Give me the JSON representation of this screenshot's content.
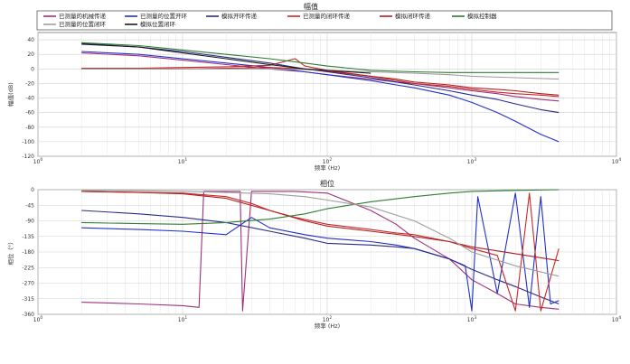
{
  "legend_title": "幅值",
  "legend": [
    {
      "name": "已测量的机械传递",
      "color": "#a0307a"
    },
    {
      "name": "已测量的位置开环",
      "color": "#2230c8"
    },
    {
      "name": "模拟开环传递",
      "color": "#2a2a8a"
    },
    {
      "name": "已测量的闭环传递",
      "color": "#c62828"
    },
    {
      "name": "模拟闭环传递",
      "color": "#b02020"
    },
    {
      "name": "模拟控制器",
      "color": "#2e7d32"
    },
    {
      "name": "已测量的位置闭环",
      "color": "#9e9e9e"
    },
    {
      "name": "模拟位置闭环",
      "color": "#1a1a1a"
    }
  ],
  "chart_data": [
    {
      "type": "line",
      "title": "",
      "xlabel": "频率 (Hz)",
      "ylabel": "幅值(dB)",
      "xscale": "log",
      "xlim": [
        1,
        10000
      ],
      "ylim": [
        -120,
        50
      ],
      "xticks": [
        "10^0",
        "10^1",
        "10^2",
        "10^3",
        "10^4"
      ],
      "yticks": [
        "40",
        "20",
        "0",
        "-20",
        "-40",
        "-60",
        "-80",
        "-100",
        "-120"
      ],
      "grid": true,
      "series": [
        {
          "name": "已测量的机械传递",
          "color": "#a0307a",
          "x": [
            2,
            5,
            10,
            20,
            40,
            70,
            100,
            200,
            300,
            400,
            700,
            1000,
            1500,
            2000,
            3000,
            4000
          ],
          "y": [
            22,
            18,
            12,
            6,
            0,
            -4,
            -8,
            -14,
            -18,
            -20,
            -26,
            -30,
            -34,
            -38,
            -42,
            -44
          ]
        },
        {
          "name": "已测量的位置开环",
          "color": "#2230c8",
          "x": [
            2,
            5,
            10,
            20,
            40,
            70,
            100,
            200,
            300,
            400,
            700,
            1000,
            1500,
            2000,
            3000,
            4000
          ],
          "y": [
            24,
            20,
            14,
            8,
            2,
            -4,
            -8,
            -16,
            -22,
            -26,
            -36,
            -46,
            -60,
            -72,
            -90,
            -100
          ]
        },
        {
          "name": "模拟开环传递",
          "color": "#2a2a8a",
          "x": [
            2,
            5,
            10,
            20,
            40,
            70,
            100,
            200,
            300,
            400,
            700,
            1000,
            1500,
            2000,
            3000,
            4000
          ],
          "y": [
            35,
            30,
            24,
            16,
            8,
            0,
            -4,
            -12,
            -18,
            -22,
            -30,
            -36,
            -42,
            -48,
            -56,
            -60
          ]
        },
        {
          "name": "已测量的闭环传递",
          "color": "#c62828",
          "x": [
            2,
            5,
            10,
            20,
            40,
            60,
            70,
            100,
            200,
            300,
            400,
            700,
            1000,
            1500,
            2000,
            3000,
            4000
          ],
          "y": [
            1,
            1,
            2,
            3,
            5,
            14,
            4,
            -2,
            -10,
            -16,
            -20,
            -24,
            -28,
            -32,
            -34,
            -36,
            -38
          ]
        },
        {
          "name": "模拟闭环传递",
          "color": "#b02020",
          "x": [
            2,
            5,
            10,
            20,
            40,
            70,
            100,
            200,
            300,
            400,
            700,
            1000,
            1500,
            2000,
            3000,
            4000
          ],
          "y": [
            0,
            0,
            0,
            1,
            2,
            0,
            -3,
            -10,
            -14,
            -18,
            -22,
            -26,
            -28,
            -30,
            -34,
            -36
          ]
        },
        {
          "name": "模拟控制器",
          "color": "#2e7d32",
          "x": [
            2,
            5,
            10,
            20,
            40,
            70,
            100,
            200,
            400,
            700,
            1000,
            2000,
            4000
          ],
          "y": [
            36,
            32,
            26,
            20,
            14,
            8,
            4,
            -2,
            -4,
            -5,
            -5,
            -5,
            -5
          ]
        },
        {
          "name": "已测量的位置闭环",
          "color": "#9e9e9e",
          "x": [
            2,
            5,
            10,
            20,
            40,
            70,
            100,
            200,
            400,
            700,
            1000,
            2000,
            4000
          ],
          "y": [
            0,
            0,
            0,
            0,
            0,
            -1,
            -2,
            -4,
            -6,
            -8,
            -10,
            -12,
            -14
          ]
        },
        {
          "name": "模拟位置闭环",
          "color": "#1a1a1a",
          "x": [
            2,
            5,
            10,
            20,
            40,
            70,
            100,
            200
          ],
          "y": [
            34,
            30,
            22,
            14,
            6,
            0,
            -2,
            -6
          ]
        }
      ]
    },
    {
      "type": "line",
      "title": "相位",
      "xlabel": "频率 (Hz)",
      "ylabel": "相位（°）",
      "xscale": "log",
      "xlim": [
        1,
        10000
      ],
      "ylim": [
        -360,
        0
      ],
      "xticks": [
        "10^0",
        "10^1",
        "10^2",
        "10^3",
        "10^4"
      ],
      "yticks": [
        "0",
        "-45",
        "-90",
        "-135",
        "-180",
        "-225",
        "-270",
        "-315",
        "-360"
      ],
      "grid": true,
      "series": [
        {
          "name": "已测量的机械传递",
          "color": "#a0307a",
          "x": [
            2,
            5,
            10,
            13,
            14,
            20,
            25,
            26,
            30,
            40,
            60,
            100,
            200,
            300,
            400,
            700,
            1000,
            1500,
            2000,
            3000,
            4000
          ],
          "y": [
            -325,
            -330,
            -335,
            -340,
            -5,
            -5,
            -5,
            -350,
            -5,
            -5,
            -5,
            -10,
            -60,
            -100,
            -140,
            -200,
            -260,
            -300,
            -330,
            -340,
            -345
          ]
        },
        {
          "name": "已测量的位置开环",
          "color": "#2230c8",
          "x": [
            2,
            5,
            10,
            20,
            30,
            40,
            70,
            100,
            200,
            300,
            400,
            700,
            900,
            1000,
            1100,
            1500,
            2000,
            2500,
            3000,
            3500,
            4000
          ],
          "y": [
            -110,
            -115,
            -120,
            -130,
            -80,
            -110,
            -130,
            -140,
            -150,
            -160,
            -170,
            -200,
            -220,
            -350,
            -20,
            -300,
            -10,
            -340,
            -20,
            -330,
            -320
          ]
        },
        {
          "name": "模拟开环传递",
          "color": "#2a2a8a",
          "x": [
            2,
            5,
            10,
            20,
            40,
            70,
            100,
            200,
            300,
            400,
            700,
            1000,
            1500,
            2000,
            3000,
            4000
          ],
          "y": [
            -60,
            -70,
            -80,
            -95,
            -120,
            -140,
            -155,
            -160,
            -165,
            -170,
            -200,
            -230,
            -260,
            -280,
            -310,
            -330
          ]
        },
        {
          "name": "已测量的闭环传递",
          "color": "#c62828",
          "x": [
            2,
            5,
            10,
            20,
            30,
            40,
            60,
            100,
            200,
            300,
            400,
            700,
            1000,
            1500,
            2000,
            2500,
            3000,
            4000
          ],
          "y": [
            -5,
            -8,
            -10,
            -20,
            -40,
            -60,
            -80,
            -100,
            -115,
            -125,
            -130,
            -150,
            -170,
            -190,
            -350,
            -10,
            -350,
            -170
          ]
        },
        {
          "name": "模拟闭环传递",
          "color": "#b02020",
          "x": [
            2,
            5,
            10,
            20,
            40,
            70,
            100,
            200,
            400,
            700,
            1000,
            2000,
            4000
          ],
          "y": [
            -5,
            -8,
            -12,
            -25,
            -60,
            -90,
            -105,
            -120,
            -135,
            -150,
            -165,
            -185,
            -205
          ]
        },
        {
          "name": "模拟控制器",
          "color": "#2e7d32",
          "x": [
            2,
            5,
            10,
            20,
            40,
            70,
            100,
            200,
            400,
            700,
            1000,
            2000,
            4000
          ],
          "y": [
            -95,
            -98,
            -100,
            -95,
            -85,
            -70,
            -55,
            -35,
            -20,
            -10,
            -5,
            -2,
            0
          ]
        },
        {
          "name": "已测量的位置闭环",
          "color": "#9e9e9e",
          "x": [
            2,
            5,
            10,
            20,
            40,
            70,
            100,
            200,
            400,
            700,
            1000,
            2000,
            4000
          ],
          "y": [
            -2,
            -3,
            -5,
            -8,
            -12,
            -20,
            -30,
            -50,
            -90,
            -140,
            -180,
            -220,
            -250
          ]
        }
      ]
    }
  ]
}
